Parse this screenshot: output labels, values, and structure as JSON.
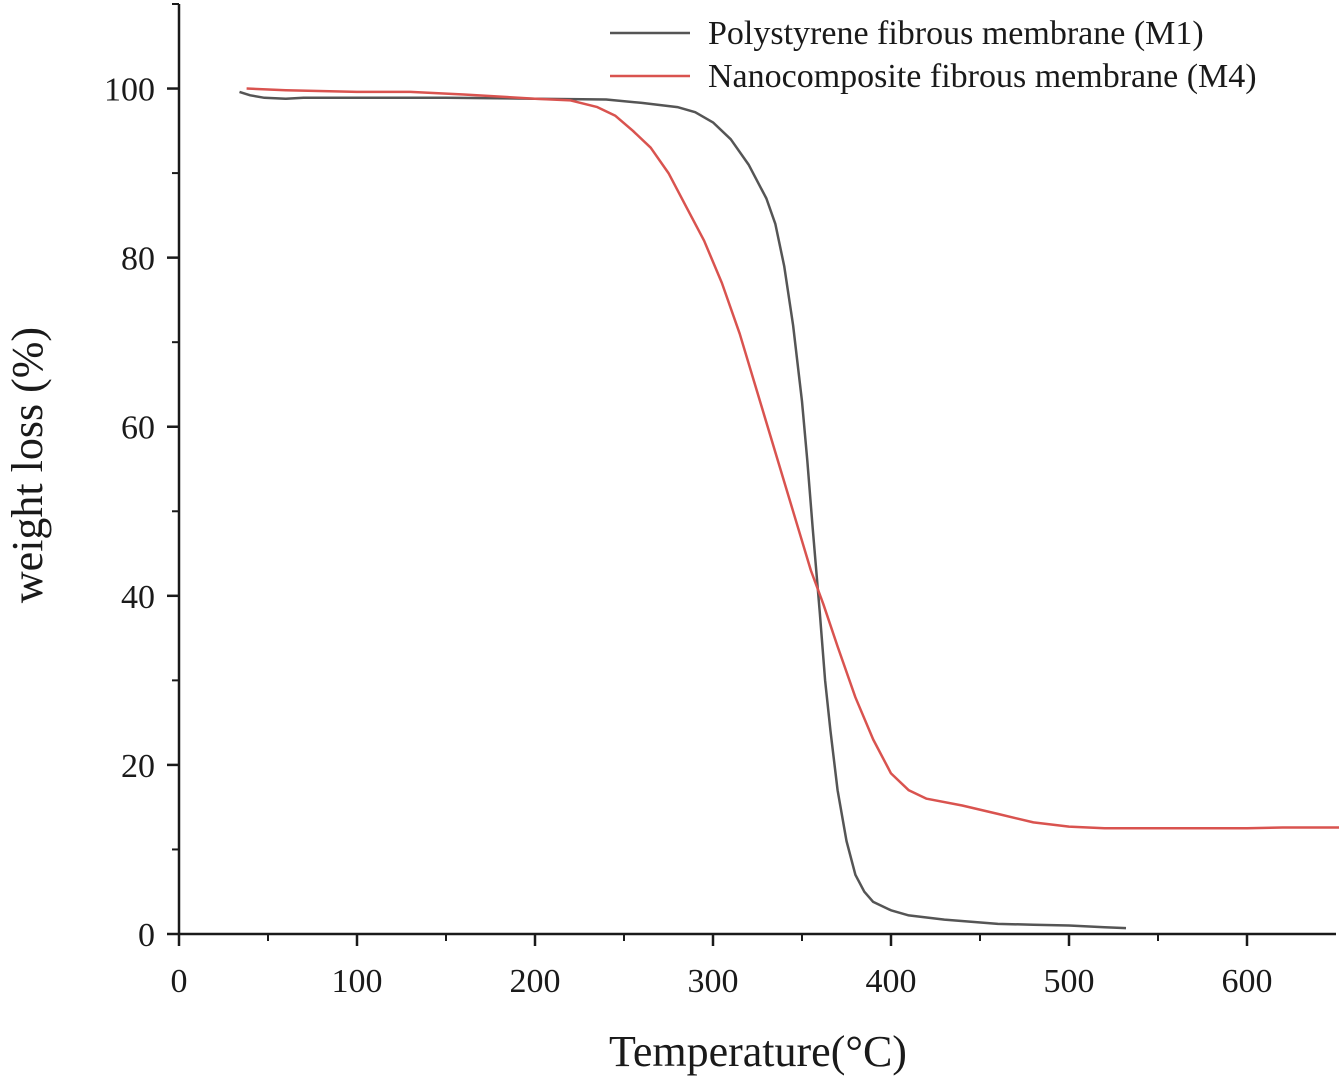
{
  "chart_data": {
    "type": "line",
    "title": "",
    "xlabel": "Temperature(°C)",
    "ylabel": "weight loss (%)",
    "xlim": [
      0,
      650
    ],
    "ylim": [
      0,
      110
    ],
    "x_ticks": [
      0,
      100,
      200,
      300,
      400,
      500,
      600
    ],
    "y_ticks": [
      0,
      20,
      40,
      60,
      80,
      100
    ],
    "grid": false,
    "legend_position": "top-right",
    "series": [
      {
        "name": "Polystyrene fibrous membrane (M1)",
        "color": "#555555",
        "points": [
          [
            34,
            99.6
          ],
          [
            40,
            99.2
          ],
          [
            48,
            98.9
          ],
          [
            60,
            98.8
          ],
          [
            70,
            98.9
          ],
          [
            100,
            98.9
          ],
          [
            150,
            98.9
          ],
          [
            200,
            98.8
          ],
          [
            240,
            98.7
          ],
          [
            260,
            98.3
          ],
          [
            280,
            97.8
          ],
          [
            290,
            97.2
          ],
          [
            300,
            96.0
          ],
          [
            310,
            94.0
          ],
          [
            320,
            91.0
          ],
          [
            330,
            87.0
          ],
          [
            335,
            84.0
          ],
          [
            340,
            79.0
          ],
          [
            345,
            72.0
          ],
          [
            350,
            63.0
          ],
          [
            353,
            56.0
          ],
          [
            356,
            48.0
          ],
          [
            360,
            38.0
          ],
          [
            363,
            30.0
          ],
          [
            366,
            24.0
          ],
          [
            370,
            17.0
          ],
          [
            375,
            11.0
          ],
          [
            380,
            7.0
          ],
          [
            385,
            5.0
          ],
          [
            390,
            3.8
          ],
          [
            400,
            2.8
          ],
          [
            410,
            2.2
          ],
          [
            430,
            1.7
          ],
          [
            460,
            1.2
          ],
          [
            480,
            1.1
          ],
          [
            500,
            1.0
          ],
          [
            520,
            0.8
          ],
          [
            532,
            0.7
          ]
        ]
      },
      {
        "name": "Nanocomposite fibrous membrane (M4)",
        "color": "#d9534f",
        "points": [
          [
            38,
            100.0
          ],
          [
            60,
            99.8
          ],
          [
            100,
            99.6
          ],
          [
            130,
            99.6
          ],
          [
            160,
            99.3
          ],
          [
            200,
            98.8
          ],
          [
            220,
            98.6
          ],
          [
            235,
            97.8
          ],
          [
            245,
            96.8
          ],
          [
            255,
            95.0
          ],
          [
            265,
            93.0
          ],
          [
            275,
            90.0
          ],
          [
            285,
            86.0
          ],
          [
            295,
            82.0
          ],
          [
            305,
            77.0
          ],
          [
            315,
            71.0
          ],
          [
            325,
            64.0
          ],
          [
            335,
            57.0
          ],
          [
            345,
            50.0
          ],
          [
            355,
            43.0
          ],
          [
            362,
            39.0
          ],
          [
            370,
            34.0
          ],
          [
            380,
            28.0
          ],
          [
            390,
            23.0
          ],
          [
            400,
            19.0
          ],
          [
            410,
            17.0
          ],
          [
            420,
            16.0
          ],
          [
            440,
            15.2
          ],
          [
            460,
            14.2
          ],
          [
            480,
            13.2
          ],
          [
            500,
            12.7
          ],
          [
            520,
            12.5
          ],
          [
            560,
            12.5
          ],
          [
            600,
            12.5
          ],
          [
            620,
            12.6
          ],
          [
            654,
            12.6
          ]
        ]
      }
    ]
  }
}
